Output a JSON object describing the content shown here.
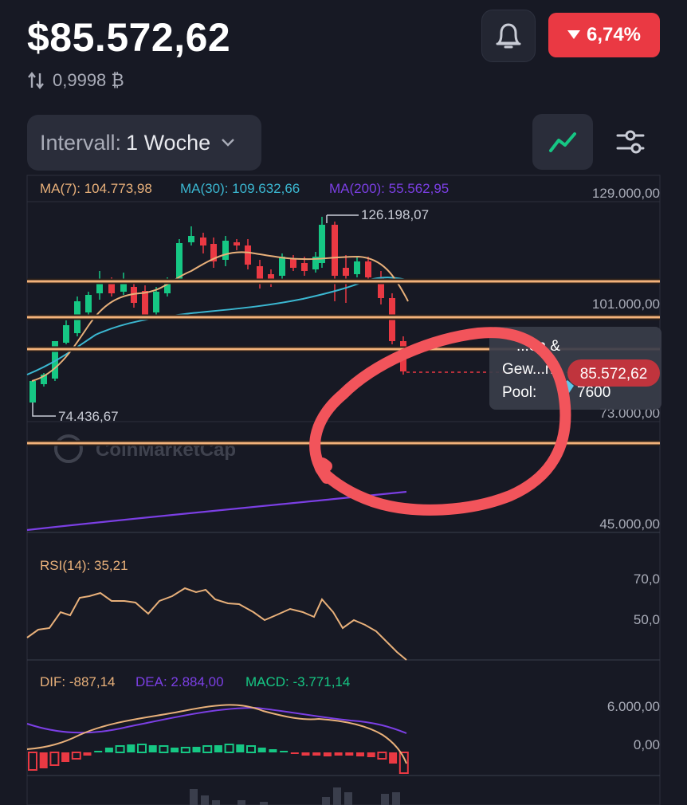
{
  "header": {
    "price": "$85.572,62",
    "btc_rate": "0,9998 ₿",
    "change": "6,74%",
    "change_color": "#ea3943"
  },
  "toolbar": {
    "interval_label": "Intervall:",
    "interval_value": "1 Woche"
  },
  "price_chart": {
    "ma7_label": "MA(7): 104.773,98",
    "ma30_label": "MA(30): 109.632,66",
    "ma200_label": "MA(200): 55.562,95",
    "y_ticks": [
      "129.000,00",
      "101.000,00",
      "73.000,00",
      "45.000,00"
    ],
    "high_label": "126.198,07",
    "low_label": "74.436,67",
    "current_price_tag": "85.572,62",
    "watermark": "CoinMarketCap",
    "tooltip_line1": "...en &",
    "tooltip_line2": "Gew...ne",
    "tooltip_line3_label": "Pool:",
    "tooltip_line3_value": "7600",
    "colors": {
      "up": "#16c784",
      "down": "#ea3943",
      "ma7": "#e8b07a",
      "ma30": "#3bb7d1",
      "ma200": "#7b3fe4",
      "hline": "#f2b27a",
      "annotation": "#f2545b"
    }
  },
  "rsi": {
    "label": "RSI(14): 35,21",
    "y_ticks": [
      "70,0",
      "50,0"
    ]
  },
  "macd": {
    "dif_label": "DIF: -887,14",
    "dea_label": "DEA: 2.884,00",
    "macd_label": "MACD: -3.771,14",
    "y_ticks": [
      "6.000,00",
      "0,00"
    ]
  }
}
